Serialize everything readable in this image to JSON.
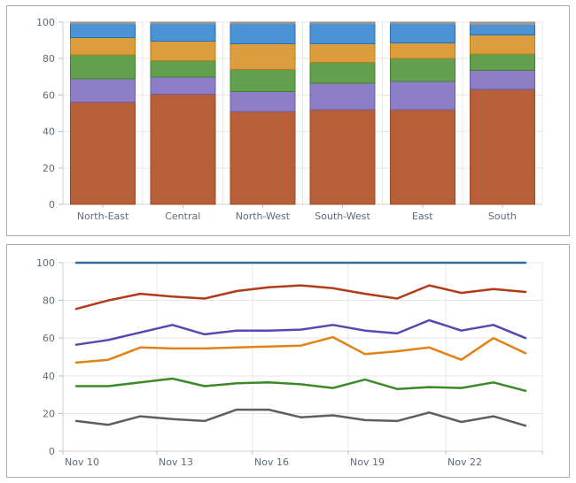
{
  "style": {
    "background": "#ffffff",
    "panel_border_color": "#ababab",
    "gridline_color": "#e7e7e7",
    "axis_line_color": "#cfcfcf",
    "tick_color": "#bdbdbd",
    "axis_label_color": "#5b6b7b"
  },
  "chart_data": [
    {
      "type": "bar",
      "stacked": true,
      "stack_total": 100,
      "title": "",
      "xlabel": "",
      "ylabel": "",
      "ylim": [
        0,
        100
      ],
      "y_ticks": [
        0,
        20,
        40,
        60,
        80,
        100
      ],
      "grid": true,
      "legend": "none",
      "categories": [
        "North-East",
        "Central",
        "North-West",
        "South-West",
        "East",
        "South"
      ],
      "series": [
        {
          "name": "rust-series",
          "color": "#b75f39",
          "border": "#9c4a22",
          "values": [
            56,
            60.5,
            51,
            52,
            52,
            63
          ]
        },
        {
          "name": "purple-series",
          "color": "#8d7ec6",
          "border": "#6c5cb0",
          "values": [
            13,
            9.5,
            11,
            14.5,
            15.5,
            10.5
          ]
        },
        {
          "name": "green-series",
          "color": "#62a04f",
          "border": "#417f30",
          "values": [
            13,
            9,
            12,
            11.5,
            12.5,
            9
          ]
        },
        {
          "name": "orange-series",
          "color": "#db9d3d",
          "border": "#bd7d12",
          "values": [
            9.5,
            10.5,
            14,
            10,
            8.5,
            10.5
          ]
        },
        {
          "name": "blue-series",
          "color": "#4a93d5",
          "border": "#2a6dab",
          "values": [
            7.5,
            9.5,
            11,
            11,
            10.5,
            5.5
          ]
        },
        {
          "name": "gray-series",
          "color": "#9d9d9d",
          "border": "#8b8b8b",
          "values": [
            1,
            1,
            1,
            1,
            1,
            1.5
          ]
        }
      ]
    },
    {
      "type": "line",
      "title": "",
      "xlabel": "",
      "ylabel": "",
      "ylim": [
        0,
        100
      ],
      "y_ticks": [
        0,
        20,
        40,
        60,
        80,
        100
      ],
      "grid": true,
      "legend": "none",
      "x_tick_labels": [
        "Nov 10",
        "Nov 13",
        "Nov 16",
        "Nov 19",
        "Nov 22"
      ],
      "points_per_series": 15,
      "series": [
        {
          "name": "blue-line",
          "color": "#2e6f9e",
          "values": [
            100,
            100,
            100,
            100,
            100,
            100,
            100,
            100,
            100,
            100,
            100,
            100,
            100,
            100,
            100
          ]
        },
        {
          "name": "red-line",
          "color": "#b13a19",
          "values": [
            75.5,
            80,
            83.5,
            82,
            81,
            85,
            87,
            88,
            86.5,
            83.5,
            81,
            88,
            84,
            86,
            84.5
          ]
        },
        {
          "name": "purple-line",
          "color": "#5c45b2",
          "values": [
            56.5,
            59,
            63,
            67,
            62,
            64,
            64,
            64.5,
            67,
            64,
            62.5,
            69.5,
            64,
            67,
            60
          ]
        },
        {
          "name": "orange-line",
          "color": "#e08214",
          "values": [
            47,
            48.5,
            55,
            54.5,
            54.5,
            55,
            55.5,
            56,
            60.5,
            51.5,
            53,
            55,
            48.5,
            60,
            52
          ]
        },
        {
          "name": "green-line",
          "color": "#3a8a27",
          "values": [
            34.5,
            34.5,
            36.5,
            38.5,
            34.5,
            36,
            36.5,
            35.5,
            33.5,
            38,
            33,
            34,
            33.5,
            36.5,
            32
          ]
        },
        {
          "name": "gray-line",
          "color": "#5e5e5e",
          "values": [
            16,
            14,
            18.5,
            17,
            16,
            22,
            22,
            18,
            19,
            16.5,
            16,
            20.5,
            15.5,
            18.5,
            13.5
          ]
        }
      ]
    }
  ]
}
